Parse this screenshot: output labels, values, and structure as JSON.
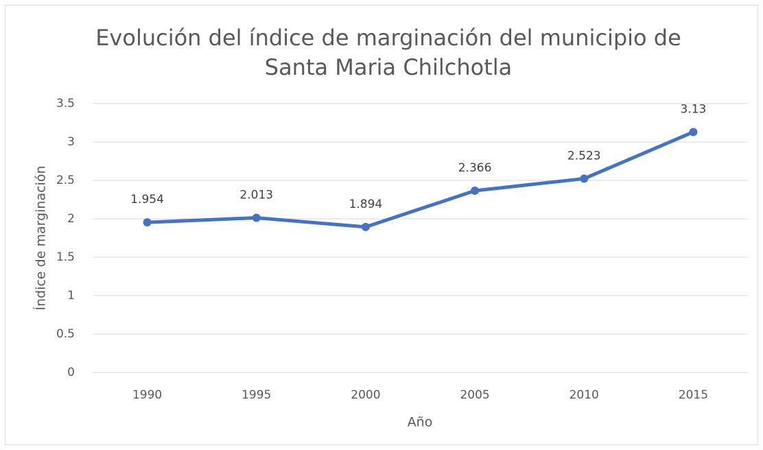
{
  "chart_data": {
    "type": "line",
    "title": [
      "Evolución del índice de marginación del municipio de",
      "Santa Maria Chilchotla"
    ],
    "x_label": "Año",
    "y_label": "Índice de marginación",
    "categories": [
      "1990",
      "1995",
      "2000",
      "2005",
      "2010",
      "2015"
    ],
    "series": [
      {
        "name": "Índice de marginación",
        "color": "#4472c4",
        "values": [
          1.954,
          2.013,
          1.894,
          2.366,
          2.523,
          3.13
        ]
      }
    ],
    "ylim": [
      0,
      3.5
    ],
    "yticks": [
      0,
      0.5,
      1,
      1.5,
      2,
      2.5,
      3,
      3.5
    ],
    "grid": true
  }
}
